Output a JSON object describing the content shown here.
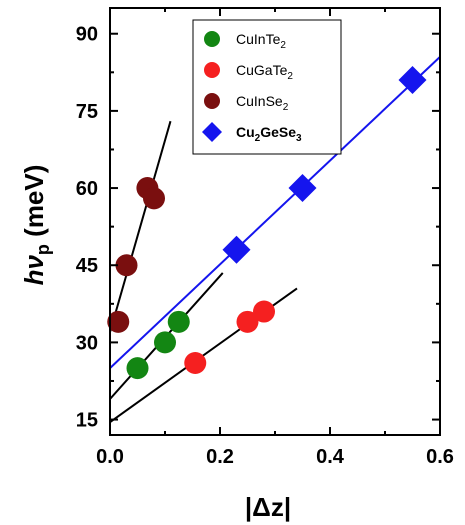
{
  "chart_data": {
    "type": "scatter",
    "xlabel": "|Δz|",
    "ylabel": "hνp (meV)",
    "ylabel_parts": {
      "main": "hν",
      "sub": "p",
      "unit": " (meV)"
    },
    "xlim": [
      0.0,
      0.6
    ],
    "ylim": [
      12,
      95
    ],
    "xticks": [
      0.0,
      0.2,
      0.4,
      0.6
    ],
    "xtick_labels": [
      "0.0",
      "0.2",
      "0.4",
      "0.6"
    ],
    "yticks": [
      15,
      30,
      45,
      60,
      75,
      90
    ],
    "ytick_labels": [
      "15",
      "30",
      "45",
      "60",
      "75",
      "90"
    ],
    "grid": false,
    "legend_position": "top-center",
    "series": [
      {
        "name": "CuInTe2",
        "legend": {
          "base": "CuInTe",
          "sub": "2"
        },
        "marker": "circle",
        "color": "#138613",
        "x": [
          0.05,
          0.1,
          0.125
        ],
        "y": [
          25,
          30,
          34
        ],
        "fit": {
          "x": [
            0.0,
            0.205
          ],
          "y": [
            19.0,
            43.5
          ],
          "color": "#000000"
        }
      },
      {
        "name": "CuGaTe2",
        "legend": {
          "base": "CuGaTe",
          "sub": "2"
        },
        "marker": "circle",
        "color": "#f52020",
        "x": [
          0.155,
          0.25,
          0.28
        ],
        "y": [
          26,
          34,
          36
        ],
        "fit": {
          "x": [
            0.0,
            0.34
          ],
          "y": [
            14.5,
            40.5
          ],
          "color": "#000000"
        }
      },
      {
        "name": "CuInSe2",
        "legend": {
          "base": "CuInSe",
          "sub": "2"
        },
        "marker": "circle",
        "color": "#7a0f0f",
        "x": [
          0.015,
          0.03,
          0.068,
          0.08
        ],
        "y": [
          34,
          45,
          60,
          58
        ],
        "fit": {
          "x": [
            0.0,
            0.11
          ],
          "y": [
            32.0,
            73.0
          ],
          "color": "#000000"
        }
      },
      {
        "name": "Cu2GeSe3",
        "legend": {
          "parts": [
            [
              "Cu",
              ""
            ],
            [
              "2",
              "sub"
            ],
            [
              "GeSe",
              ""
            ],
            [
              "3",
              "sub"
            ]
          ],
          "bold": true
        },
        "marker": "diamond",
        "color": "#1515ee",
        "x": [
          0.23,
          0.35,
          0.55
        ],
        "y": [
          48,
          60,
          81
        ],
        "fit": {
          "x": [
            0.0,
            0.6
          ],
          "y": [
            25.0,
            85.5
          ],
          "color": "#1515ee"
        }
      }
    ]
  }
}
